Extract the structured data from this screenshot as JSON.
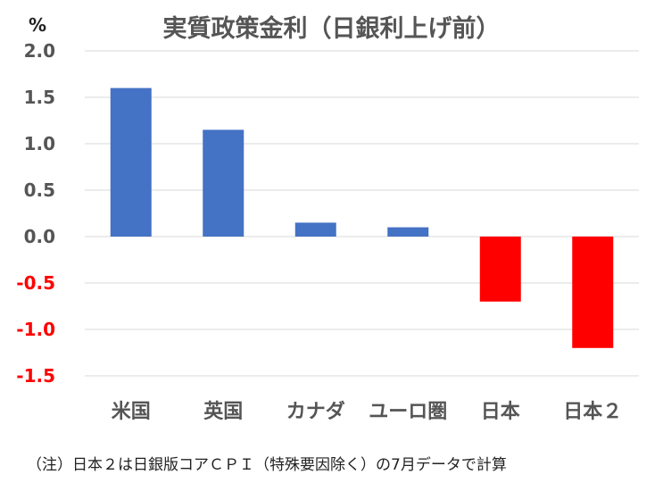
{
  "chart_data": {
    "type": "bar",
    "title": "実質政策金利（日銀利上げ前）",
    "ylabel": "%",
    "categories": [
      "米国",
      "英国",
      "カナダ",
      "ユーロ圏",
      "日本",
      "日本２"
    ],
    "values": [
      1.6,
      1.15,
      0.15,
      0.1,
      -0.7,
      -1.2
    ],
    "ylim": [
      -1.5,
      2.0
    ],
    "yticks": [
      "2.0",
      "1.5",
      "1.0",
      "0.5",
      "0.0",
      "-0.5",
      "-1.0",
      "-1.5"
    ],
    "grid": true,
    "legend": "none",
    "colors": {
      "positive": "#4472c4",
      "negative": "#ff0000",
      "negative_tick_label": "#ff0000",
      "tick_label": "#555555",
      "gridline": "#d9d9d9"
    }
  },
  "footnote": "（注）日本２は日銀版コアＣＰＩ（特殊要因除く）の7月データで計算"
}
